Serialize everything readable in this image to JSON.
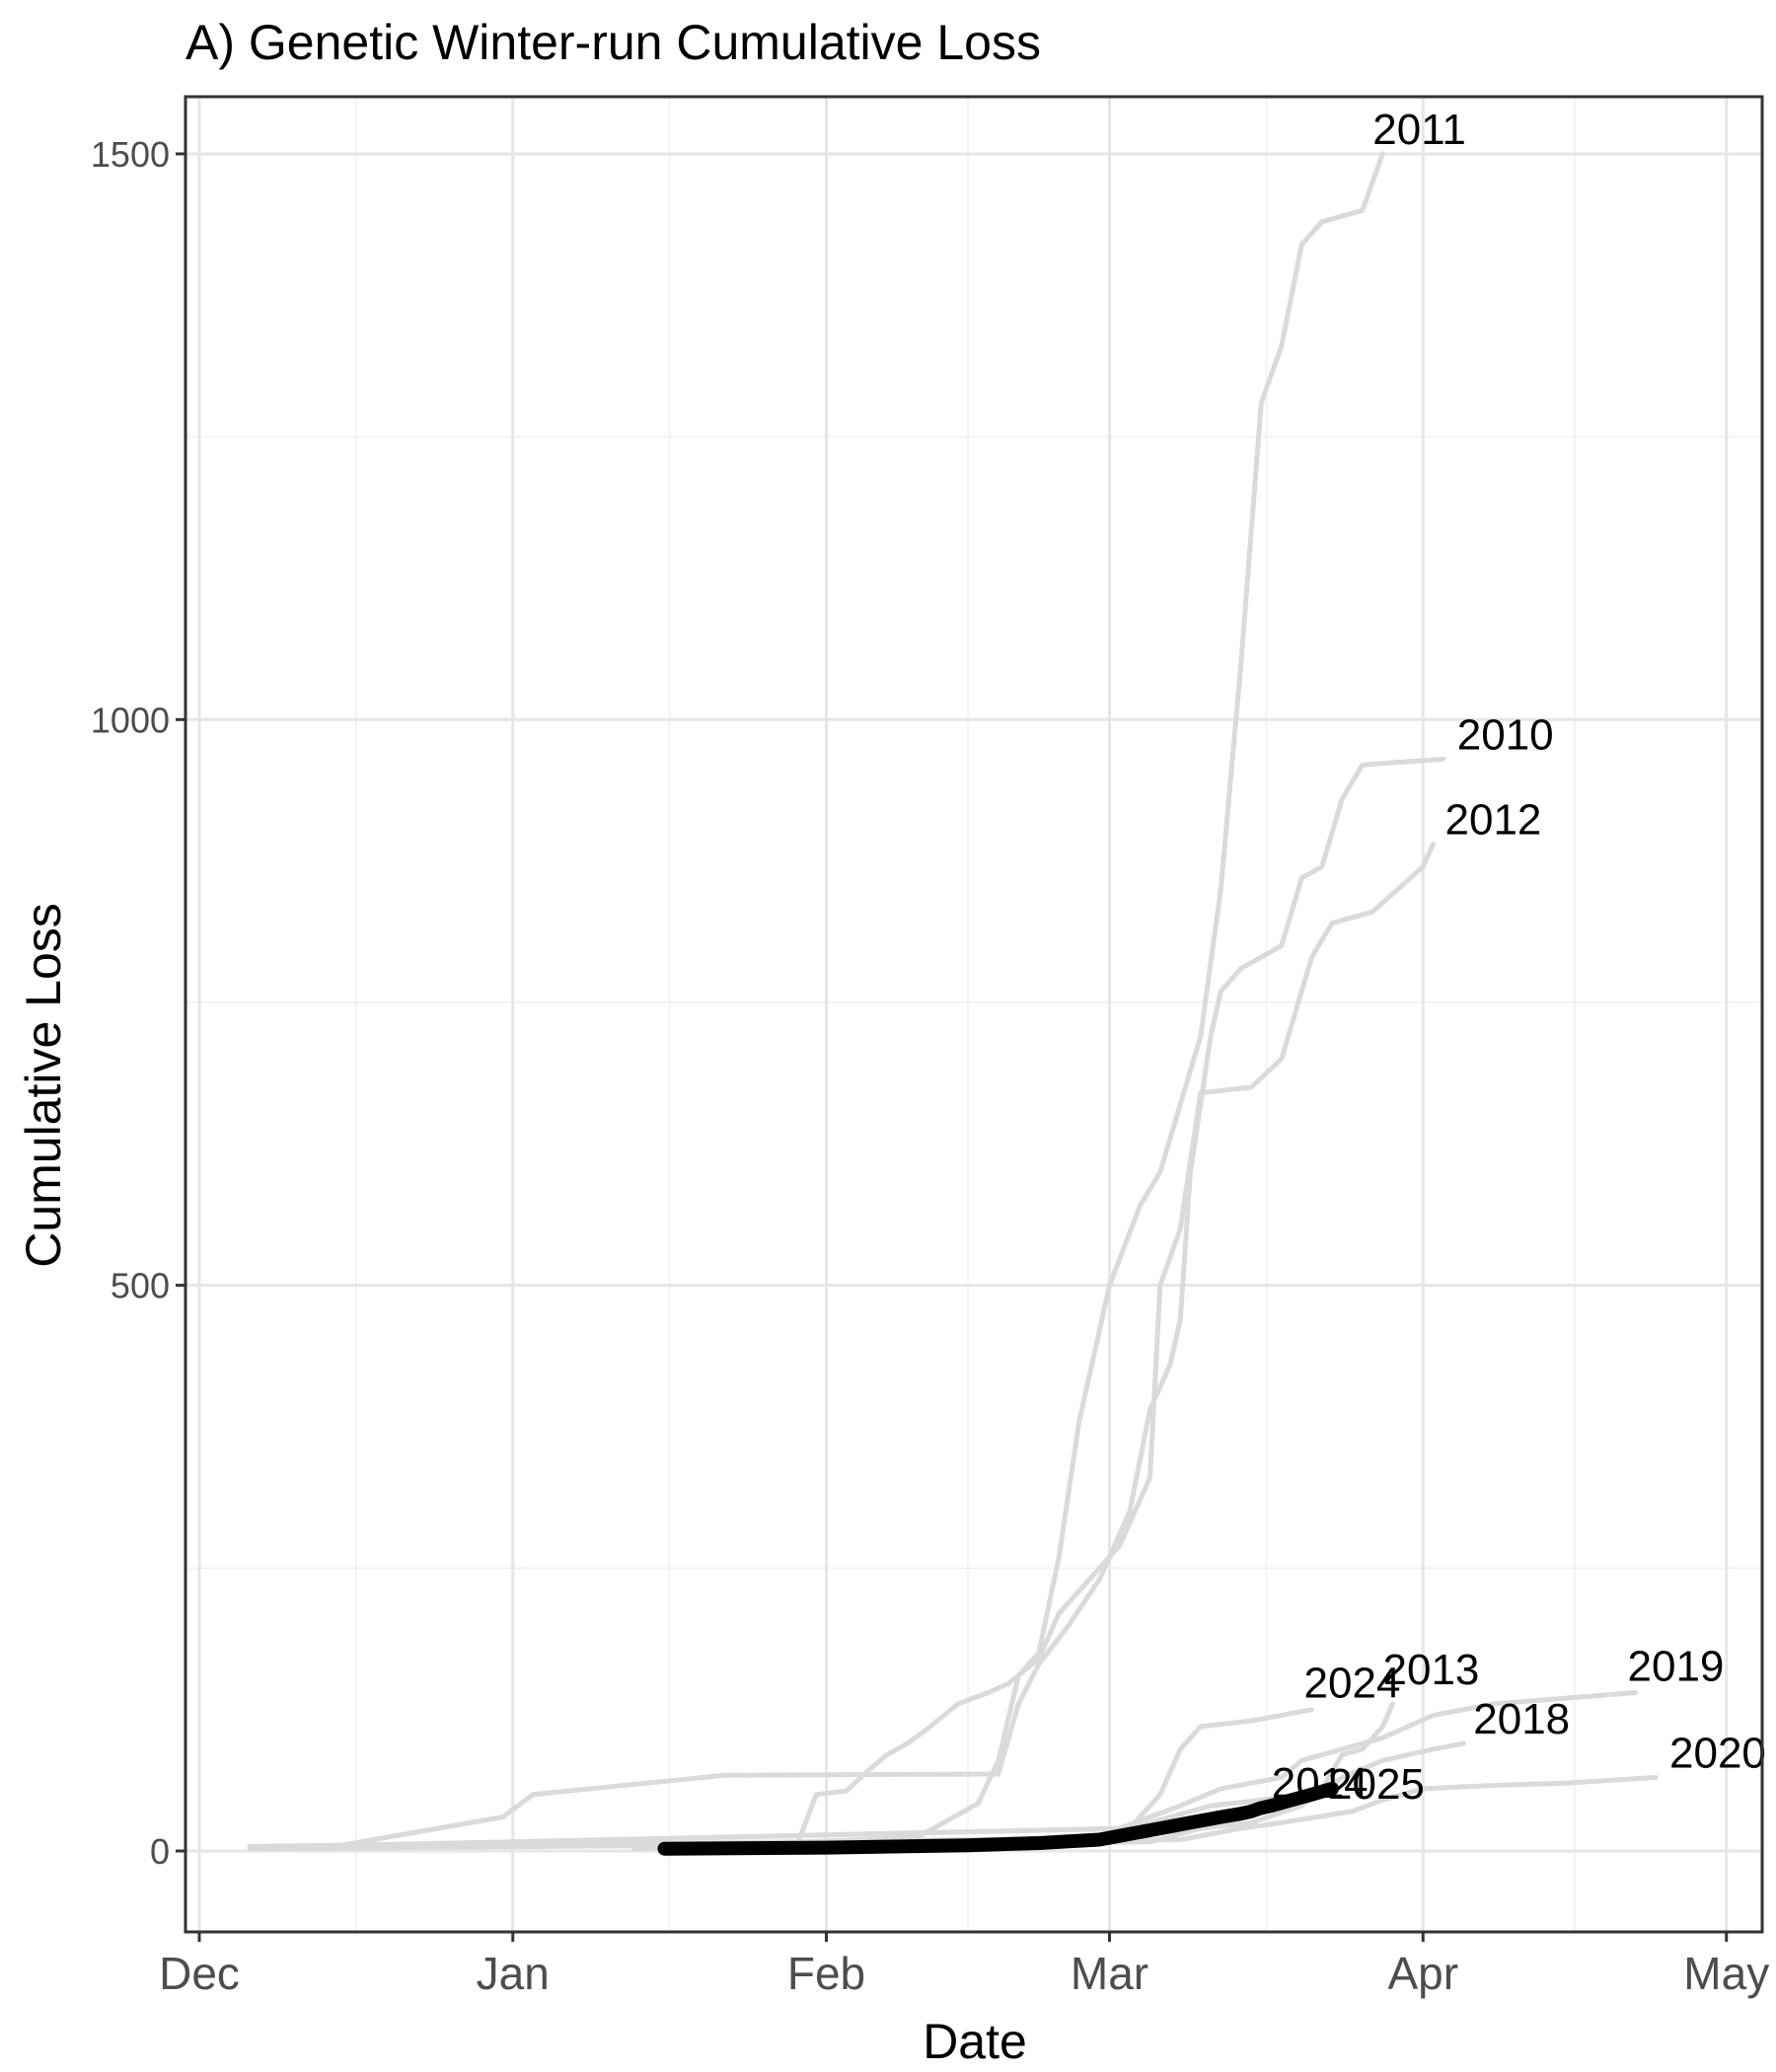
{
  "chart_data": {
    "type": "line",
    "title": "A) Genetic Winter-run Cumulative Loss",
    "xlabel": "Date",
    "ylabel": "Cumulative Loss",
    "x_ticks": [
      "Dec",
      "Jan",
      "Feb",
      "Mar",
      "Apr",
      "May"
    ],
    "x_tick_dates": [
      "12-01",
      "01-01",
      "02-01",
      "03-01",
      "04-01",
      "05-01"
    ],
    "y_ticks": [
      0,
      500,
      1000,
      1500
    ],
    "ylim": [
      -75,
      1610
    ],
    "grid": true,
    "x_unit": "date (MM-DD)",
    "series": [
      {
        "name": "2011",
        "color": "#dadada",
        "label_pos": "12-03",
        "points": [
          [
            "01-13",
            2
          ],
          [
            "02-10",
            12
          ],
          [
            "02-16",
            42
          ],
          [
            "02-18",
            80
          ],
          [
            "02-20",
            155
          ],
          [
            "02-22",
            175
          ],
          [
            "02-24",
            260
          ],
          [
            "02-26",
            380
          ],
          [
            "02-28",
            460
          ],
          [
            "03-01",
            500
          ],
          [
            "03-04",
            570
          ],
          [
            "03-06",
            600
          ],
          [
            "03-08",
            660
          ],
          [
            "03-10",
            720
          ],
          [
            "03-12",
            850
          ],
          [
            "03-14",
            1050
          ],
          [
            "03-16",
            1280
          ],
          [
            "03-18",
            1330
          ],
          [
            "03-20",
            1420
          ],
          [
            "03-22",
            1440
          ],
          [
            "03-26",
            1450
          ],
          [
            "03-28",
            1500
          ]
        ]
      },
      {
        "name": "2010",
        "color": "#dadada",
        "label_pos": "12-03",
        "points": [
          [
            "12-06",
            4
          ],
          [
            "12-15",
            5
          ],
          [
            "12-31",
            30
          ],
          [
            "01-03",
            50
          ],
          [
            "01-22",
            67
          ],
          [
            "02-18",
            68
          ],
          [
            "02-20",
            130
          ],
          [
            "02-22",
            165
          ],
          [
            "02-25",
            200
          ],
          [
            "02-28",
            240
          ],
          [
            "03-03",
            300
          ],
          [
            "03-05",
            390
          ],
          [
            "03-07",
            430
          ],
          [
            "03-08",
            470
          ],
          [
            "03-09",
            600
          ],
          [
            "03-11",
            720
          ],
          [
            "03-12",
            760
          ],
          [
            "03-14",
            780
          ],
          [
            "03-18",
            800
          ],
          [
            "03-20",
            860
          ],
          [
            "03-22",
            870
          ],
          [
            "03-24",
            930
          ],
          [
            "03-26",
            960
          ],
          [
            "04-03",
            965
          ]
        ]
      },
      {
        "name": "2012",
        "color": "#dadada",
        "label_pos": "12-03",
        "points": [
          [
            "01-29",
            3
          ],
          [
            "01-31",
            50
          ],
          [
            "02-03",
            53
          ],
          [
            "02-05",
            70
          ],
          [
            "02-07",
            85
          ],
          [
            "02-09",
            95
          ],
          [
            "02-11",
            108
          ],
          [
            "02-14",
            130
          ],
          [
            "02-17",
            140
          ],
          [
            "02-19",
            148
          ],
          [
            "02-22",
            170
          ],
          [
            "02-24",
            210
          ],
          [
            "02-26",
            230
          ],
          [
            "03-02",
            270
          ],
          [
            "03-05",
            330
          ],
          [
            "03-06",
            500
          ],
          [
            "03-08",
            550
          ],
          [
            "03-10",
            670
          ],
          [
            "03-15",
            675
          ],
          [
            "03-18",
            700
          ],
          [
            "03-21",
            790
          ],
          [
            "03-23",
            820
          ],
          [
            "03-27",
            830
          ],
          [
            "04-01",
            870
          ],
          [
            "04-02",
            890
          ]
        ]
      },
      {
        "name": "2013",
        "color": "#dadada",
        "label_pos": "12-03",
        "points": [
          [
            "12-06",
            3
          ],
          [
            "03-03",
            20
          ],
          [
            "03-07",
            30
          ],
          [
            "03-11",
            40
          ],
          [
            "03-16",
            45
          ],
          [
            "03-20",
            50
          ],
          [
            "03-22",
            55
          ],
          [
            "03-24",
            85
          ],
          [
            "03-26",
            90
          ],
          [
            "03-28",
            110
          ],
          [
            "03-29",
            130
          ]
        ]
      },
      {
        "name": "2019",
        "color": "#dadada",
        "label_pos": "12-03",
        "points": [
          [
            "12-06",
            3
          ],
          [
            "03-02",
            20
          ],
          [
            "03-08",
            40
          ],
          [
            "03-12",
            55
          ],
          [
            "03-18",
            65
          ],
          [
            "03-20",
            80
          ],
          [
            "03-24",
            90
          ],
          [
            "03-28",
            100
          ],
          [
            "04-02",
            120
          ],
          [
            "04-05",
            125
          ],
          [
            "04-08",
            130
          ],
          [
            "04-15",
            135
          ],
          [
            "04-22",
            140
          ]
        ]
      },
      {
        "name": "2024",
        "color": "#dadada",
        "label_pos": "12-03",
        "points": [
          [
            "12-06",
            3
          ],
          [
            "03-02",
            10
          ],
          [
            "03-04",
            30
          ],
          [
            "03-06",
            50
          ],
          [
            "03-08",
            90
          ],
          [
            "03-10",
            110
          ],
          [
            "03-15",
            115
          ],
          [
            "03-18",
            120
          ],
          [
            "03-21",
            125
          ]
        ]
      },
      {
        "name": "2018",
        "color": "#dadada",
        "label_pos": "12-03",
        "points": [
          [
            "12-06",
            2
          ],
          [
            "03-05",
            8
          ],
          [
            "03-10",
            20
          ],
          [
            "03-15",
            25
          ],
          [
            "03-20",
            40
          ],
          [
            "03-24",
            65
          ],
          [
            "03-28",
            80
          ],
          [
            "04-02",
            90
          ],
          [
            "04-05",
            95
          ]
        ]
      },
      {
        "name": "2020",
        "color": "#dadada",
        "label_pos": "12-03",
        "points": [
          [
            "12-06",
            2
          ],
          [
            "03-08",
            10
          ],
          [
            "03-14",
            20
          ],
          [
            "03-18",
            25
          ],
          [
            "03-25",
            35
          ],
          [
            "03-28",
            45
          ],
          [
            "04-01",
            55
          ],
          [
            "04-08",
            58
          ],
          [
            "04-15",
            60
          ],
          [
            "04-24",
            65
          ]
        ]
      },
      {
        "name": "2014",
        "color": "#dadada",
        "label_pos": "12-03",
        "points": [
          [
            "12-06",
            2
          ],
          [
            "03-04",
            12
          ],
          [
            "03-08",
            22
          ],
          [
            "03-12",
            30
          ],
          [
            "03-16",
            35
          ],
          [
            "03-18",
            40
          ]
        ]
      },
      {
        "name": "2025",
        "color": "#000000",
        "label_pos": "12-03",
        "points": [
          [
            "01-16",
            2
          ],
          [
            "02-01",
            3
          ],
          [
            "02-15",
            5
          ],
          [
            "02-22",
            7
          ],
          [
            "02-28",
            10
          ],
          [
            "03-03",
            15
          ],
          [
            "03-06",
            20
          ],
          [
            "03-09",
            25
          ],
          [
            "03-12",
            30
          ],
          [
            "03-14",
            33
          ],
          [
            "03-15",
            35
          ],
          [
            "03-16",
            38
          ],
          [
            "03-17",
            40
          ],
          [
            "03-19",
            45
          ],
          [
            "03-21",
            50
          ],
          [
            "03-23",
            55
          ]
        ]
      }
    ]
  }
}
